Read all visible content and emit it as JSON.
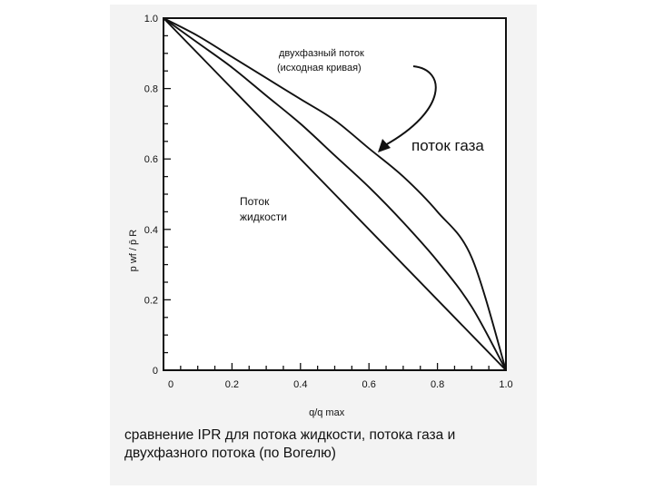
{
  "caption_lines": [
    "сравнение IPR для потока жидкости, потока газа и",
    "двухфазного потока (по Вогелю)"
  ],
  "chart_data": {
    "type": "line",
    "title": "",
    "xlabel": "q/q max",
    "ylabel": "p wf / p̄ R",
    "xlim": [
      0,
      1.0
    ],
    "ylim": [
      0,
      1.0
    ],
    "x_ticks": [
      "0",
      "0.2",
      "0.4",
      "0.6",
      "0.8",
      "1.0"
    ],
    "y_ticks": [
      "0",
      "0.2",
      "0.4",
      "0.6",
      "0.8",
      "1.0"
    ],
    "grid": false,
    "series": [
      {
        "name": "Поток жидкости",
        "x": [
          0,
          1.0
        ],
        "y": [
          1.0,
          0
        ]
      },
      {
        "name": "двухфазный поток (исходная кривая)",
        "x": [
          0,
          0.1,
          0.2,
          0.3,
          0.4,
          0.5,
          0.6,
          0.7,
          0.8,
          0.9,
          1.0
        ],
        "y": [
          1.0,
          0.93,
          0.86,
          0.78,
          0.7,
          0.61,
          0.52,
          0.42,
          0.31,
          0.18,
          0
        ]
      },
      {
        "name": "поток газа",
        "x": [
          0,
          0.1,
          0.2,
          0.3,
          0.4,
          0.5,
          0.6,
          0.7,
          0.8,
          0.9,
          1.0
        ],
        "y": [
          1.0,
          0.95,
          0.89,
          0.83,
          0.77,
          0.71,
          0.63,
          0.55,
          0.45,
          0.32,
          0
        ]
      }
    ],
    "annotations": [
      {
        "text": "двухфазный поток",
        "target": "двухфазный поток (исходная кривая)"
      },
      {
        "text": "(исходная кривая)",
        "target": "двухфазный поток (исходная кривая)"
      },
      {
        "text": "поток газа",
        "target": "поток газа"
      },
      {
        "text": "Поток",
        "target": "Поток жидкости"
      },
      {
        "text": "жидкости",
        "target": "Поток жидкости"
      }
    ]
  }
}
